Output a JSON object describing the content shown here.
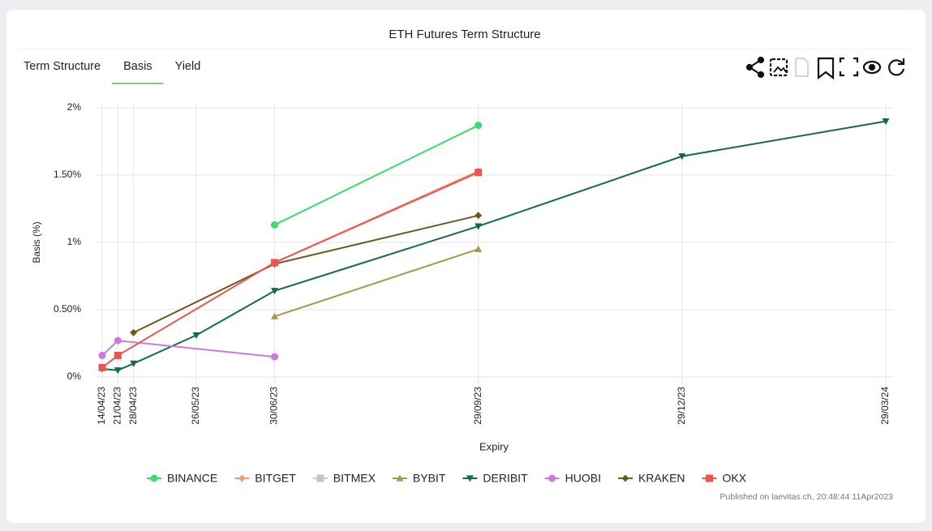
{
  "tabs": [
    "Term Structure",
    "Basis",
    "Yield"
  ],
  "active_tab": 1,
  "footer": "Published on laevitas.ch, 20:48:44 11Apr2023",
  "chart_data": {
    "type": "line",
    "title": "ETH Futures Term Structure",
    "x_label": "Expiry",
    "y_label": "Basis (%)",
    "xlim": [
      "14/04/23",
      "29/03/24"
    ],
    "xticks": [
      "14/04/23",
      "21/04/23",
      "28/04/23",
      "26/05/23",
      "30/06/23",
      "29/09/23",
      "29/12/23",
      "29/03/24"
    ],
    "ylim": [
      0,
      2
    ],
    "yticks": [
      {
        "value": 0,
        "label": "0%"
      },
      {
        "value": 0.5,
        "label": "0.50%"
      },
      {
        "value": 1,
        "label": "1%"
      },
      {
        "value": 1.5,
        "label": "1.50%"
      },
      {
        "value": 2,
        "label": "2%"
      }
    ],
    "grid": true,
    "series": [
      {
        "name": "BINANCE",
        "color": "#3ddc6f",
        "marker": "circle",
        "x": [
          "30/06/23",
          "29/09/23"
        ],
        "values": [
          1.13,
          1.87
        ]
      },
      {
        "name": "BITGET",
        "color": "#f39a7c",
        "marker": "diamond",
        "x": [
          "30/06/23",
          "29/09/23"
        ],
        "values": [
          0.85,
          1.53
        ]
      },
      {
        "name": "BITMEX",
        "color": "#c4c4c4",
        "marker": "square",
        "x": [],
        "values": []
      },
      {
        "name": "BYBIT",
        "color": "#a39a4a",
        "marker": "triangle",
        "x": [
          "30/06/23",
          "29/09/23"
        ],
        "values": [
          0.45,
          0.95
        ]
      },
      {
        "name": "DERIBIT",
        "color": "#136a4c",
        "marker": "triangle-down",
        "x": [
          "14/04/23",
          "21/04/23",
          "28/04/23",
          "26/05/23",
          "30/06/23",
          "29/09/23",
          "29/12/23",
          "29/03/24"
        ],
        "values": [
          0.06,
          0.05,
          0.1,
          0.31,
          0.64,
          1.12,
          1.64,
          1.9
        ]
      },
      {
        "name": "HUOBI",
        "color": "#c77be0",
        "marker": "circle",
        "x": [
          "14/04/23",
          "21/04/23",
          "30/06/23"
        ],
        "values": [
          0.16,
          0.27,
          0.15
        ]
      },
      {
        "name": "KRAKEN",
        "color": "#6b5a1e",
        "marker": "diamond",
        "x": [
          "28/04/23",
          "30/06/23",
          "29/09/23"
        ],
        "values": [
          0.33,
          0.84,
          1.2
        ]
      },
      {
        "name": "OKX",
        "color": "#ef5350",
        "marker": "square",
        "x": [
          "14/04/23",
          "21/04/23",
          "30/06/23",
          "29/09/23"
        ],
        "values": [
          0.07,
          0.16,
          0.85,
          1.52
        ]
      }
    ]
  }
}
